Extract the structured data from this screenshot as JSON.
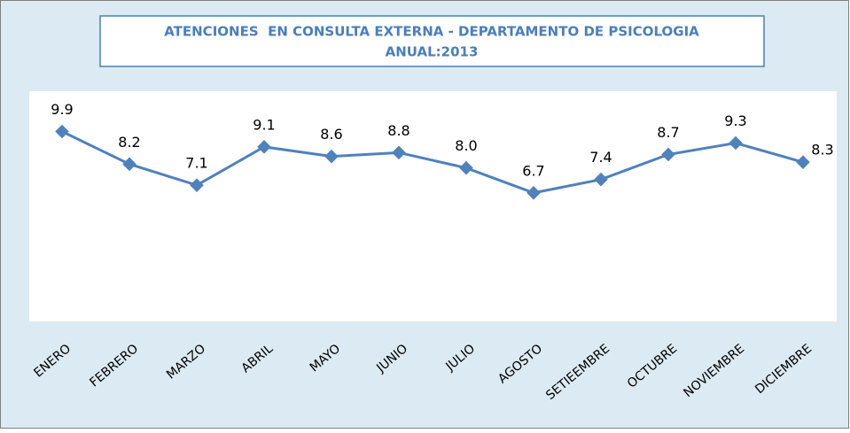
{
  "chart_data": {
    "type": "line",
    "title": "ATENCIONES  EN CONSULTA EXTERNA - DEPARTAMENTO DE PSICOLOGIA",
    "subtitle": "ANUAL:2013",
    "categories": [
      "ENERO",
      "FEBRERO",
      "MARZO",
      "ABRIL",
      "MAYO",
      "JUNIO",
      "JULIO",
      "AGOSTO",
      "SETIEEMBRE",
      "OCTUBRE",
      "NOVIEMBRE",
      "DICIEMBRE"
    ],
    "values": [
      9.9,
      8.2,
      7.1,
      9.1,
      8.6,
      8.8,
      8.0,
      6.7,
      7.4,
      8.7,
      9.3,
      8.3
    ],
    "value_labels": [
      "9.9",
      "8.2",
      "7.1",
      "9.1",
      "8.6",
      "8.8",
      "8.0",
      "6.7",
      "7.4",
      "8.7",
      "9.3",
      "8.3"
    ],
    "color": "#4f81bd",
    "ylim": [
      0,
      12
    ]
  }
}
